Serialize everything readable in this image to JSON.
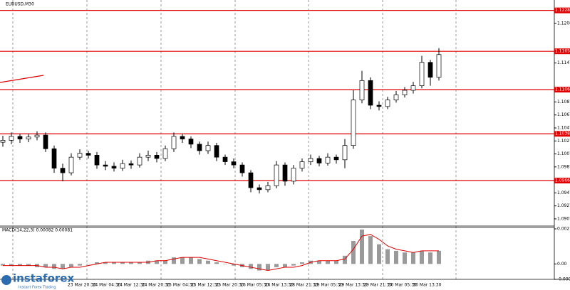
{
  "chart_data": [
    {
      "type": "candlestick",
      "title": "EURUSD,M30",
      "open": [
        1.1025,
        1.1028,
        1.1034,
        1.103,
        1.1033,
        1.1036,
        1.1015,
        1.0985,
        1.0978,
        1.1002,
        1.1008,
        1.1005,
        1.099,
        1.0988,
        1.0985,
        1.0992,
        1.099,
        1.1002,
        1.1005,
        1.1,
        1.1015,
        1.1034,
        1.103,
        1.1022,
        1.1012,
        1.102,
        1.1002,
        1.0995,
        1.099,
        1.0978,
        1.0955,
        1.0952,
        1.0958,
        1.099,
        1.0965,
        1.0985,
        1.0995,
        1.1,
        1.0993,
        1.1002,
        1.0998,
        1.102,
        1.109,
        1.112,
        1.1082,
        1.108,
        1.109,
        1.1098,
        1.1105,
        1.1112,
        1.1148,
        1.1125
      ],
      "high": [
        1.1035,
        1.104,
        1.1038,
        1.1038,
        1.1042,
        1.104,
        1.102,
        1.0992,
        1.1008,
        1.1014,
        1.1012,
        1.101,
        1.0996,
        1.0994,
        1.0998,
        1.0997,
        1.1008,
        1.1012,
        1.101,
        1.102,
        1.104,
        1.1038,
        1.1034,
        1.1026,
        1.1026,
        1.1024,
        1.1006,
        1.1,
        1.0994,
        1.0982,
        1.096,
        1.0964,
        1.0996,
        1.0994,
        1.099,
        1.1,
        1.1006,
        1.1004,
        1.1008,
        1.1006,
        1.103,
        1.1105,
        1.1135,
        1.1125,
        1.1088,
        1.1095,
        1.1104,
        1.111,
        1.1118,
        1.1158,
        1.1152,
        1.117
      ],
      "low": [
        1.1018,
        1.1022,
        1.1024,
        1.1025,
        1.1028,
        1.101,
        1.0978,
        1.0965,
        1.0974,
        1.0998,
        1.1,
        1.0984,
        1.0982,
        1.098,
        1.0981,
        1.0984,
        1.0986,
        1.0996,
        1.0994,
        1.0996,
        1.101,
        1.1024,
        1.1016,
        1.1006,
        1.1007,
        1.0996,
        1.099,
        1.0985,
        1.0972,
        1.0948,
        1.0946,
        1.0948,
        1.0954,
        1.0958,
        1.096,
        1.098,
        1.099,
        1.0988,
        1.0989,
        1.0992,
        1.0985,
        1.1015,
        1.1085,
        1.1076,
        1.1074,
        1.1076,
        1.1086,
        1.1094,
        1.11,
        1.1108,
        1.1112,
        1.112
      ],
      "close": [
        1.1028,
        1.1034,
        1.103,
        1.1033,
        1.1036,
        1.1015,
        1.0985,
        1.0978,
        1.1002,
        1.1008,
        1.1005,
        1.099,
        1.0988,
        1.0985,
        1.0992,
        1.099,
        1.1002,
        1.1005,
        1.1,
        1.1015,
        1.1034,
        1.103,
        1.1022,
        1.1012,
        1.102,
        1.1002,
        1.0995,
        1.099,
        1.0978,
        1.0955,
        1.0952,
        1.0958,
        1.099,
        1.0965,
        1.0985,
        1.0995,
        1.1,
        1.0993,
        1.1002,
        1.0998,
        1.102,
        1.109,
        1.112,
        1.1082,
        1.108,
        1.109,
        1.1098,
        1.1105,
        1.1112,
        1.1148,
        1.1125,
        1.116
      ],
      "up_color": "#ffffff",
      "down_color": "#000000",
      "ylim": [
        1.0896,
        1.1244
      ],
      "yticks": [
        1.1208,
        1.1147,
        1.1087,
        1.1067,
        1.1047,
        1.1027,
        1.1007,
        1.0987,
        1.0947,
        1.0927,
        1.0907
      ],
      "levels": [
        1.1228,
        1.1165,
        1.1106,
        1.1038,
        1.0966
      ],
      "level_color": "#e00000",
      "x_labels": [
        "23 Mar 20:30",
        "24 Mar 04:30",
        "24 Mar 12:30",
        "24 Mar 20:30",
        "25 Mar 04:30",
        "25 Mar 12:30",
        "25 Mar 20:30",
        "26 Mar 05:30",
        "26 Mar 13:30",
        "28 Mar 21:30",
        "29 Mar 05:30",
        "29 Mar 13:30",
        "29 Mar 21:30",
        "30 Mar 05:30",
        "30 Mar 13:30"
      ]
    },
    {
      "type": "macd",
      "title": "MACD(14,22,3) 0.00082 0.00081",
      "histogram": [
        -0.0001,
        -0.0001,
        -0.0001,
        -0.0001,
        -0.0002,
        -0.0002,
        -0.0003,
        -0.0003,
        -0.0002,
        -0.0001,
        0.0,
        0.0001,
        0.0001,
        0.0001,
        0.0001,
        0.0001,
        0.0001,
        0.0002,
        0.0002,
        0.0002,
        0.0004,
        0.0004,
        0.0004,
        0.0003,
        0.0002,
        0.0001,
        0.0,
        -0.0001,
        -0.0002,
        -0.0003,
        -0.0004,
        -0.0004,
        -0.0002,
        -0.0002,
        -0.0001,
        0.0001,
        0.0002,
        0.0002,
        0.0002,
        0.0002,
        0.0005,
        0.0014,
        0.0021,
        0.0017,
        0.0012,
        0.0009,
        0.0008,
        0.0007,
        0.0007,
        0.0008,
        0.0007,
        0.0008
      ],
      "signal": [
        -0.0001,
        -0.0001,
        -0.0001,
        -0.0001,
        -0.0001,
        -0.0002,
        -0.0002,
        -0.0003,
        -0.0002,
        -0.0002,
        -0.0001,
        0.0,
        0.0001,
        0.0001,
        0.0001,
        0.0001,
        0.0001,
        0.0001,
        0.0002,
        0.0002,
        0.0003,
        0.0004,
        0.0004,
        0.0004,
        0.0003,
        0.0002,
        0.0001,
        0.0,
        -0.0001,
        -0.0002,
        -0.0003,
        -0.0004,
        -0.0003,
        -0.0002,
        -0.0002,
        -0.0001,
        0.0001,
        0.0002,
        0.0002,
        0.0002,
        0.0003,
        0.0009,
        0.0017,
        0.0018,
        0.0015,
        0.0011,
        0.0009,
        0.0008,
        0.0007,
        0.0008,
        0.0008,
        0.0008
      ],
      "histogram_color": "#9a9a9a",
      "signal_color": "#e00000",
      "ylim": [
        -0.00094,
        0.00214
      ],
      "yticks": [
        0.00214,
        {
          "value": 0,
          "label": "0.00"
        },
        -0.00094
      ]
    }
  ],
  "watermark": {
    "brand": "instaforex",
    "tagline": "Instant Forex Trading"
  }
}
